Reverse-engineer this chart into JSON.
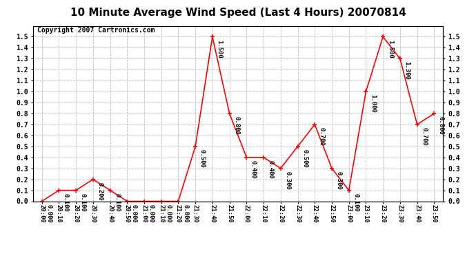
{
  "title": "10 Minute Average Wind Speed (Last 4 Hours) 20070814",
  "copyright": "Copyright 2007 Cartronics.com",
  "x_labels": [
    "20:00",
    "20:10",
    "20:20",
    "20:30",
    "20:40",
    "20:50",
    "21:00",
    "21:10",
    "21:20",
    "21:30",
    "21:40",
    "21:50",
    "22:00",
    "22:10",
    "22:20",
    "22:30",
    "22:40",
    "22:50",
    "23:00",
    "23:10",
    "23:20",
    "23:30",
    "23:40",
    "23:50"
  ],
  "y_values": [
    0.0,
    0.1,
    0.1,
    0.2,
    0.1,
    0.0,
    0.0,
    0.0,
    0.0,
    0.5,
    1.5,
    0.8,
    0.4,
    0.4,
    0.3,
    0.5,
    0.7,
    0.3,
    0.1,
    1.0,
    1.5,
    1.3,
    0.7,
    0.8
  ],
  "ylim": [
    0.0,
    1.6
  ],
  "yticks": [
    0.0,
    0.1,
    0.2,
    0.3,
    0.4,
    0.5,
    0.6,
    0.7,
    0.8,
    0.9,
    1.0,
    1.1,
    1.2,
    1.3,
    1.4,
    1.5
  ],
  "line_color": "#ff0000",
  "bg_color": "#ffffff",
  "grid_color": "#bbbbbb",
  "title_fontsize": 11,
  "copyright_fontsize": 7,
  "annotation_fontsize": 6.5,
  "annotation_rotation": 270
}
